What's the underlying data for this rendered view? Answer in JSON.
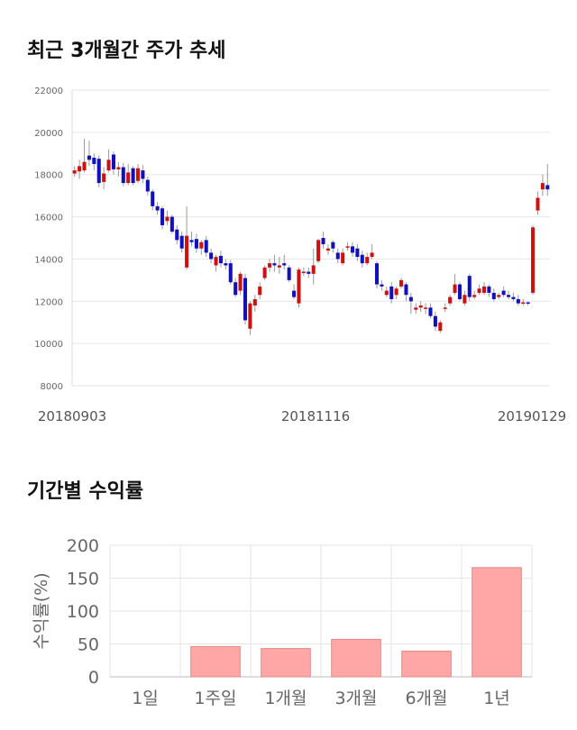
{
  "sections": {
    "price_title": "최근 3개월간 주가 추세",
    "returns_title": "기간별 수익률"
  },
  "colors": {
    "up": "#cc1111",
    "down": "#1111bb",
    "bar_fill": "#ffa6a6",
    "bar_stroke": "#e08a8a",
    "grid": "#e6e6e6"
  },
  "chart_data": [
    {
      "type": "candlestick",
      "ylim": [
        8000,
        22000
      ],
      "y_ticks": [
        "22000",
        "20000",
        "18000",
        "16000",
        "14000",
        "12000",
        "10000",
        "8000"
      ],
      "x_labels": [
        "20180903",
        "20181116",
        "20190129"
      ],
      "grid": true,
      "candles": [
        {
          "o": 18050,
          "c": 18200,
          "h": 18400,
          "l": 17900
        },
        {
          "o": 18150,
          "c": 18400,
          "h": 18700,
          "l": 17800
        },
        {
          "o": 18200,
          "c": 18600,
          "h": 19700,
          "l": 18100
        },
        {
          "o": 18900,
          "c": 18700,
          "h": 19600,
          "l": 18400
        },
        {
          "o": 18800,
          "c": 18500,
          "h": 19000,
          "l": 18200
        },
        {
          "o": 18750,
          "c": 17600,
          "h": 18900,
          "l": 17400
        },
        {
          "o": 17650,
          "c": 18050,
          "h": 18350,
          "l": 17300
        },
        {
          "o": 18200,
          "c": 18700,
          "h": 19200,
          "l": 18100
        },
        {
          "o": 18950,
          "c": 18250,
          "h": 19100,
          "l": 18000
        },
        {
          "o": 18250,
          "c": 18350,
          "h": 18600,
          "l": 17900
        },
        {
          "o": 18350,
          "c": 17600,
          "h": 18550,
          "l": 17450
        },
        {
          "o": 17600,
          "c": 18100,
          "h": 18500,
          "l": 17500
        },
        {
          "o": 18300,
          "c": 17600,
          "h": 18400,
          "l": 17500
        },
        {
          "o": 17700,
          "c": 18300,
          "h": 18500,
          "l": 17600
        },
        {
          "o": 18200,
          "c": 17800,
          "h": 18450,
          "l": 17600
        },
        {
          "o": 17750,
          "c": 17200,
          "h": 17900,
          "l": 17000
        },
        {
          "o": 17200,
          "c": 16500,
          "h": 17300,
          "l": 16300
        },
        {
          "o": 16500,
          "c": 16300,
          "h": 16700,
          "l": 16100
        },
        {
          "o": 16400,
          "c": 15600,
          "h": 16500,
          "l": 15400
        },
        {
          "o": 15800,
          "c": 16000,
          "h": 16300,
          "l": 15600
        },
        {
          "o": 16000,
          "c": 15300,
          "h": 16100,
          "l": 15200
        },
        {
          "o": 15400,
          "c": 14900,
          "h": 15600,
          "l": 14700
        },
        {
          "o": 15100,
          "c": 14500,
          "h": 15300,
          "l": 14300
        },
        {
          "o": 13600,
          "c": 15100,
          "h": 16500,
          "l": 13500
        },
        {
          "o": 14900,
          "c": 14800,
          "h": 15300,
          "l": 14600
        },
        {
          "o": 14950,
          "c": 14500,
          "h": 15200,
          "l": 14300
        },
        {
          "o": 14500,
          "c": 14800,
          "h": 14900,
          "l": 14200
        },
        {
          "o": 14900,
          "c": 14300,
          "h": 15100,
          "l": 14100
        },
        {
          "o": 14300,
          "c": 14000,
          "h": 14500,
          "l": 13800
        },
        {
          "o": 13700,
          "c": 14100,
          "h": 14200,
          "l": 13400
        },
        {
          "o": 14150,
          "c": 13800,
          "h": 14400,
          "l": 13600
        },
        {
          "o": 13800,
          "c": 13700,
          "h": 14000,
          "l": 13500
        },
        {
          "o": 13800,
          "c": 12900,
          "h": 13950,
          "l": 12800
        },
        {
          "o": 12900,
          "c": 12300,
          "h": 13100,
          "l": 12200
        },
        {
          "o": 12500,
          "c": 13300,
          "h": 13400,
          "l": 12300
        },
        {
          "o": 13100,
          "c": 11100,
          "h": 13300,
          "l": 10900
        },
        {
          "o": 10700,
          "c": 11900,
          "h": 12000,
          "l": 10400
        },
        {
          "o": 11800,
          "c": 12100,
          "h": 12300,
          "l": 11500
        },
        {
          "o": 12300,
          "c": 12700,
          "h": 12900,
          "l": 12100
        },
        {
          "o": 13100,
          "c": 13600,
          "h": 13700,
          "l": 13000
        },
        {
          "o": 13600,
          "c": 13800,
          "h": 14000,
          "l": 13400
        },
        {
          "o": 13800,
          "c": 13700,
          "h": 14200,
          "l": 13400
        },
        {
          "o": 13600,
          "c": 13700,
          "h": 14100,
          "l": 13300
        },
        {
          "o": 13800,
          "c": 13700,
          "h": 14200,
          "l": 13500
        },
        {
          "o": 13600,
          "c": 13000,
          "h": 13700,
          "l": 12900
        },
        {
          "o": 12500,
          "c": 12200,
          "h": 12800,
          "l": 12100
        },
        {
          "o": 11900,
          "c": 13500,
          "h": 13600,
          "l": 11700
        },
        {
          "o": 13400,
          "c": 13400,
          "h": 13600,
          "l": 13200
        },
        {
          "o": 13400,
          "c": 13300,
          "h": 13600,
          "l": 13100
        },
        {
          "o": 13300,
          "c": 13700,
          "h": 14500,
          "l": 12800
        },
        {
          "o": 13900,
          "c": 14900,
          "h": 14950,
          "l": 13800
        },
        {
          "o": 15000,
          "c": 14700,
          "h": 15300,
          "l": 14500
        },
        {
          "o": 14400,
          "c": 14500,
          "h": 14700,
          "l": 14200
        },
        {
          "o": 14800,
          "c": 14500,
          "h": 14900,
          "l": 14300
        },
        {
          "o": 14300,
          "c": 14000,
          "h": 14500,
          "l": 13800
        },
        {
          "o": 13800,
          "c": 14300,
          "h": 14500,
          "l": 13700
        },
        {
          "o": 14600,
          "c": 14600,
          "h": 14800,
          "l": 14400
        },
        {
          "o": 14600,
          "c": 14300,
          "h": 14800,
          "l": 14100
        },
        {
          "o": 14500,
          "c": 14100,
          "h": 14700,
          "l": 13900
        },
        {
          "o": 14200,
          "c": 13800,
          "h": 14400,
          "l": 13600
        },
        {
          "o": 13800,
          "c": 14100,
          "h": 14300,
          "l": 13700
        },
        {
          "o": 14100,
          "c": 14300,
          "h": 14700,
          "l": 14000
        },
        {
          "o": 13800,
          "c": 12800,
          "h": 13900,
          "l": 12600
        },
        {
          "o": 12800,
          "c": 12700,
          "h": 13000,
          "l": 12500
        },
        {
          "o": 12300,
          "c": 12500,
          "h": 12700,
          "l": 12200
        },
        {
          "o": 12700,
          "c": 12100,
          "h": 12900,
          "l": 11900
        },
        {
          "o": 12300,
          "c": 12600,
          "h": 12700,
          "l": 12100
        },
        {
          "o": 12700,
          "c": 13000,
          "h": 13100,
          "l": 12600
        },
        {
          "o": 12800,
          "c": 12300,
          "h": 12900,
          "l": 12000
        },
        {
          "o": 12200,
          "c": 12000,
          "h": 12400,
          "l": 11400
        },
        {
          "o": 11600,
          "c": 11700,
          "h": 11900,
          "l": 11400
        },
        {
          "o": 11700,
          "c": 11800,
          "h": 12000,
          "l": 11500
        },
        {
          "o": 11700,
          "c": 11700,
          "h": 11900,
          "l": 11400
        },
        {
          "o": 11700,
          "c": 11300,
          "h": 11900,
          "l": 11200
        },
        {
          "o": 11300,
          "c": 10800,
          "h": 11500,
          "l": 10600
        },
        {
          "o": 10600,
          "c": 11000,
          "h": 11100,
          "l": 10500
        },
        {
          "o": 11700,
          "c": 11700,
          "h": 11900,
          "l": 11500
        },
        {
          "o": 11900,
          "c": 12200,
          "h": 12300,
          "l": 11800
        },
        {
          "o": 12400,
          "c": 12800,
          "h": 13300,
          "l": 12300
        },
        {
          "o": 12800,
          "c": 12100,
          "h": 12900,
          "l": 12000
        },
        {
          "o": 11900,
          "c": 12300,
          "h": 12500,
          "l": 11800
        },
        {
          "o": 13200,
          "c": 12200,
          "h": 13300,
          "l": 12000
        },
        {
          "o": 12200,
          "c": 12300,
          "h": 12500,
          "l": 12100
        },
        {
          "o": 12400,
          "c": 12600,
          "h": 12800,
          "l": 12300
        },
        {
          "o": 12400,
          "c": 12700,
          "h": 12900,
          "l": 12300
        },
        {
          "o": 12700,
          "c": 12400,
          "h": 12800,
          "l": 12200
        },
        {
          "o": 12400,
          "c": 12100,
          "h": 12600,
          "l": 12000
        },
        {
          "o": 12200,
          "c": 12300,
          "h": 12400,
          "l": 12100
        },
        {
          "o": 12500,
          "c": 12300,
          "h": 12700,
          "l": 12200
        },
        {
          "o": 12300,
          "c": 12200,
          "h": 12500,
          "l": 12100
        },
        {
          "o": 12200,
          "c": 12100,
          "h": 12400,
          "l": 12000
        },
        {
          "o": 12100,
          "c": 11900,
          "h": 12300,
          "l": 11800
        },
        {
          "o": 11900,
          "c": 11950,
          "h": 12100,
          "l": 11800
        },
        {
          "o": 11950,
          "c": 11900,
          "h": 12000,
          "l": 11800
        },
        {
          "o": 12400,
          "c": 15500,
          "h": 15600,
          "l": 12300
        },
        {
          "o": 16300,
          "c": 16900,
          "h": 17200,
          "l": 16100
        },
        {
          "o": 17300,
          "c": 17600,
          "h": 18000,
          "l": 17000
        },
        {
          "o": 17500,
          "c": 17300,
          "h": 18500,
          "l": 17000
        }
      ]
    },
    {
      "type": "bar",
      "categories": [
        "1일",
        "1주일",
        "1개월",
        "3개월",
        "6개월",
        "1년"
      ],
      "values": [
        0,
        46,
        43,
        57,
        39,
        166
      ],
      "ylabel": "수익률(%)",
      "ylim": [
        0,
        200
      ],
      "y_ticks": [
        "0",
        "50",
        "100",
        "150",
        "200"
      ],
      "grid": true
    }
  ]
}
